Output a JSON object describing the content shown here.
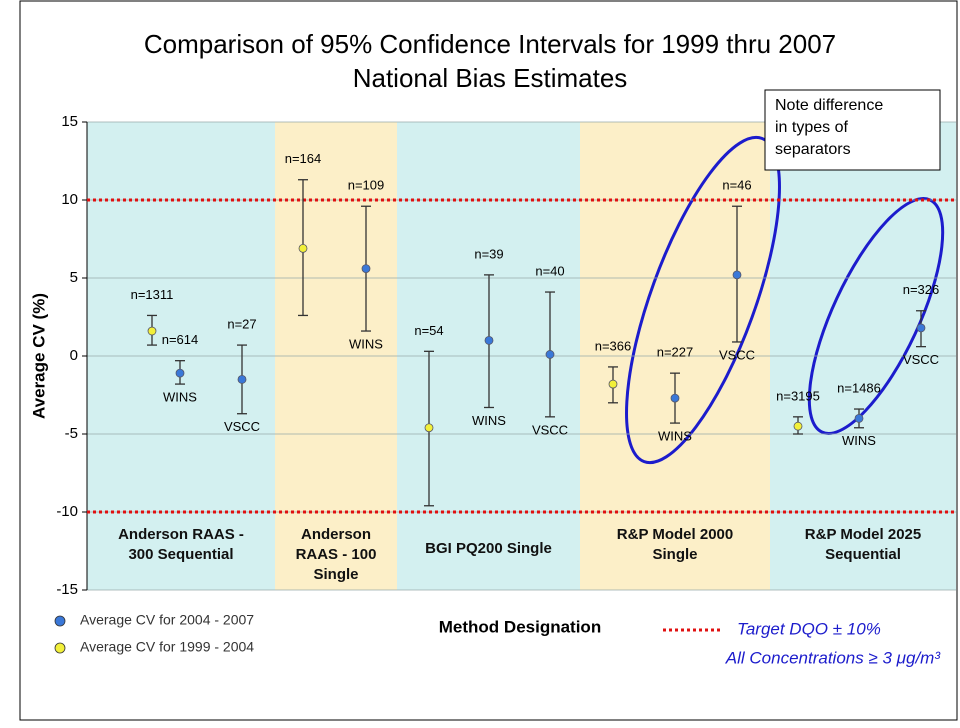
{
  "chart_data": {
    "type": "errorbar",
    "title": [
      "Comparison of 95% Confidence Intervals for 1999 thru 2007",
      "National Bias Estimates"
    ],
    "ylabel": "Average CV (%)",
    "xlabel": "Method Designation",
    "ylim": [
      -15,
      15
    ],
    "yticks": [
      15,
      10,
      5,
      0,
      -5,
      -10,
      -15
    ],
    "grid": true,
    "series": [
      {
        "name": "Average CV for 2004 - 2007",
        "color": "#3a78d8"
      },
      {
        "name": "Average CV for 1999 - 2004",
        "color": "#f2f03a"
      }
    ],
    "target_lines": [
      10,
      -10
    ],
    "target_legend": [
      "Target DQO ± 10%",
      "All Concentrations ≥ 3 μg/m³"
    ],
    "annotation": [
      "Note difference",
      "in types of",
      "separators"
    ],
    "groups": [
      {
        "name": [
          "Anderson RAAS -",
          "300 Sequential"
        ],
        "color": "#d3f0f0",
        "points": [
          {
            "series": 1,
            "n": "n=1311",
            "value": 1.6,
            "low": 0.7,
            "high": 2.6
          },
          {
            "series": 0,
            "n": "n=614",
            "value": -1.1,
            "low": -1.8,
            "high": -0.3,
            "label": "WINS"
          },
          {
            "series": 0,
            "n": "n=27",
            "value": -1.5,
            "low": -3.7,
            "high": 0.7,
            "label": "VSCC"
          }
        ]
      },
      {
        "name": [
          "Anderson",
          "RAAS - 100",
          "Single"
        ],
        "color": "#fcefc8",
        "points": [
          {
            "series": 1,
            "n": "n=164",
            "value": 6.9,
            "low": 2.6,
            "high": 11.3
          },
          {
            "series": 0,
            "n": "n=109",
            "value": 5.6,
            "low": 1.6,
            "high": 9.6,
            "label": "WINS"
          }
        ]
      },
      {
        "name": [
          "BGI PQ200 Single"
        ],
        "color": "#d3f0f0",
        "points": [
          {
            "series": 1,
            "n": "n=54",
            "value": -4.6,
            "low": -9.6,
            "high": 0.3
          },
          {
            "series": 0,
            "n": "n=39",
            "value": 1.0,
            "low": -3.3,
            "high": 5.2,
            "label": "WINS"
          },
          {
            "series": 0,
            "n": "n=40",
            "value": 0.1,
            "low": -3.9,
            "high": 4.1,
            "label": "VSCC"
          }
        ]
      },
      {
        "name": [
          "R&P Model 2000",
          "Single"
        ],
        "color": "#fcefc8",
        "points": [
          {
            "series": 1,
            "n": "n=366",
            "value": -1.8,
            "low": -3.0,
            "high": -0.7
          },
          {
            "series": 0,
            "n": "n=227",
            "value": -2.7,
            "low": -4.3,
            "high": -1.1,
            "label": "WINS"
          },
          {
            "series": 0,
            "n": "n=46",
            "value": 5.2,
            "low": 0.9,
            "high": 9.6,
            "label": "VSCC"
          }
        ]
      },
      {
        "name": [
          "R&P Model 2025",
          "Sequential"
        ],
        "color": "#d3f0f0",
        "points": [
          {
            "series": 1,
            "n": "n=3195",
            "value": -4.5,
            "low": -5.0,
            "high": -3.9
          },
          {
            "series": 0,
            "n": "n=1486",
            "value": -4.0,
            "low": -4.6,
            "high": -3.4,
            "label": "WINS"
          },
          {
            "series": 0,
            "n": "n=326",
            "value": 1.8,
            "low": 0.6,
            "high": 2.9,
            "label": "VSCC"
          }
        ]
      }
    ]
  }
}
